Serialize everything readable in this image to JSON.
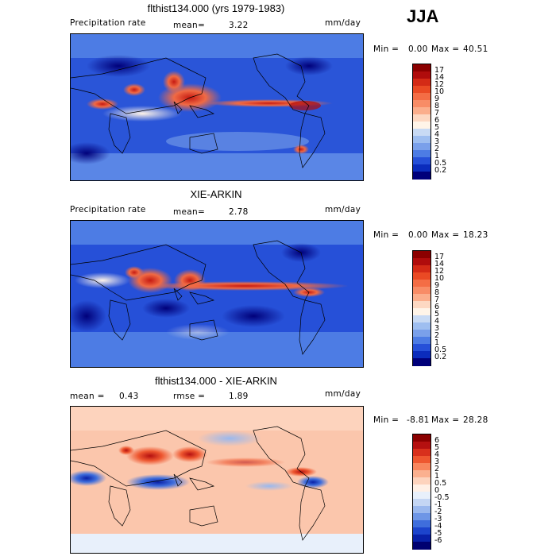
{
  "season": "JJA",
  "panels": [
    {
      "title": "flthist134.000 (yrs 1979-1983)",
      "left_label": "Precipitation rate",
      "mid_label": "mean=",
      "mid_value": "3.22",
      "units": "mm/day",
      "min_label": "Min =",
      "min_value": "0.00",
      "max_label": "Max =",
      "max_value": "40.51",
      "colorbar": {
        "labels": [
          "17",
          "14",
          "12",
          "10",
          "9",
          "8",
          "7",
          "6",
          "5",
          "4",
          "3",
          "2",
          "1",
          "0.5",
          "0.2"
        ],
        "colors": [
          "#8b0000",
          "#b00c0c",
          "#d42a16",
          "#ea4a24",
          "#f46d45",
          "#f88c66",
          "#fbae8c",
          "#fdd8c2",
          "#fff4e8",
          "#c8daf4",
          "#9ebef0",
          "#7aa0ea",
          "#4d7ce4",
          "#2650d8",
          "#0b2cbc",
          "#00007a"
        ]
      }
    },
    {
      "title": "XIE-ARKIN",
      "left_label": "Precipitation rate",
      "mid_label": "mean=",
      "mid_value": "2.78",
      "units": "mm/day",
      "min_label": "Min =",
      "min_value": "0.00",
      "max_label": "Max =",
      "max_value": "18.23",
      "colorbar": {
        "labels": [
          "17",
          "14",
          "12",
          "10",
          "9",
          "8",
          "7",
          "6",
          "5",
          "4",
          "3",
          "2",
          "1",
          "0.5",
          "0.2"
        ],
        "colors": [
          "#8b0000",
          "#b00c0c",
          "#d42a16",
          "#ea4a24",
          "#f46d45",
          "#f88c66",
          "#fbae8c",
          "#fdd8c2",
          "#fff4e8",
          "#c8daf4",
          "#9ebef0",
          "#7aa0ea",
          "#4d7ce4",
          "#2650d8",
          "#0b2cbc",
          "#00007a"
        ]
      }
    },
    {
      "title": "flthist134.000 - XIE-ARKIN",
      "left_label": "mean =",
      "left_value": "0.43",
      "mid_label": "rmse =",
      "mid_value": "1.89",
      "units": "mm/day",
      "min_label": "Min =",
      "min_value": "-8.81",
      "max_label": "Max =",
      "max_value": "28.28",
      "colorbar": {
        "labels": [
          "6",
          "5",
          "4",
          "3",
          "2",
          "1",
          "0.5",
          "0",
          "-0.5",
          "-1",
          "-2",
          "-3",
          "-4",
          "-5",
          "-6"
        ],
        "colors": [
          "#8b0000",
          "#b51010",
          "#d8301c",
          "#ee5730",
          "#f8865e",
          "#fbb08f",
          "#fdd3bd",
          "#fff0e6",
          "#e8f0fb",
          "#c4d6f4",
          "#9ab8ee",
          "#6e96e6",
          "#3f6edc",
          "#1c44cc",
          "#0820a8",
          "#000070"
        ]
      }
    }
  ]
}
